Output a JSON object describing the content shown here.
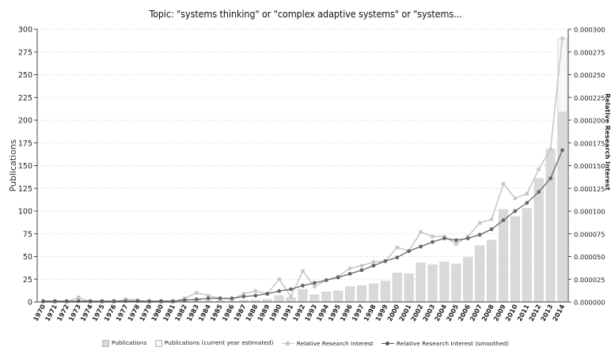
{
  "chart_data": {
    "type": "bar",
    "title": "Topic: \"systems thinking\" or \"complex adaptive systems\" or \"systems...",
    "ylabel": "Publications",
    "y2label": "Relative Research Interest",
    "ylim": [
      0,
      300
    ],
    "y2lim": [
      0,
      0.0003
    ],
    "yticks": [
      "0",
      "25",
      "50",
      "75",
      "100",
      "125",
      "150",
      "175",
      "200",
      "225",
      "250",
      "275",
      "300"
    ],
    "y2ticks": [
      "0.000000",
      "0.000025",
      "0.000050",
      "0.000075",
      "0.000100",
      "0.000125",
      "0.000150",
      "0.000175",
      "0.000200",
      "0.000225",
      "0.000250",
      "0.000275",
      "0.000300"
    ],
    "grid": true,
    "legend_position": "bottom",
    "categories": [
      "1970",
      "1971",
      "1972",
      "1973",
      "1974",
      "1975",
      "1976",
      "1977",
      "1978",
      "1979",
      "1980",
      "1981",
      "1982",
      "1983",
      "1984",
      "1985",
      "1986",
      "1987",
      "1988",
      "1989",
      "1990",
      "1991",
      "1992",
      "1993",
      "1994",
      "1995",
      "1996",
      "1997",
      "1998",
      "1999",
      "2000",
      "2001",
      "2002",
      "2003",
      "2004",
      "2005",
      "2006",
      "2007",
      "2008",
      "2009",
      "2010",
      "2011",
      "2012",
      "2013",
      "2014"
    ],
    "series": [
      {
        "name": "Publications",
        "kind": "bar",
        "axis": "left",
        "color": "#d9d9d9",
        "values": [
          0,
          0,
          0,
          1,
          0,
          0,
          0,
          0,
          0,
          0,
          0,
          0,
          1,
          3,
          2,
          2,
          1,
          2,
          2,
          3,
          7,
          5,
          14,
          8,
          11,
          12,
          17,
          18,
          20,
          23,
          32,
          31,
          43,
          41,
          44,
          42,
          49,
          62,
          68,
          102,
          94,
          103,
          136,
          168,
          209
        ]
      },
      {
        "name": "Publications (current year estimated)",
        "kind": "bar",
        "axis": "left",
        "color": "#f7f7f7",
        "values": [
          0,
          0,
          0,
          0,
          0,
          0,
          0,
          0,
          0,
          0,
          0,
          0,
          0,
          0,
          0,
          0,
          0,
          0,
          0,
          0,
          0,
          0,
          0,
          0,
          0,
          0,
          0,
          0,
          0,
          0,
          0,
          0,
          0,
          0,
          0,
          0,
          0,
          0,
          0,
          0,
          0,
          0,
          0,
          0,
          290
        ]
      },
      {
        "name": "Relative Research Interest",
        "kind": "line",
        "axis": "right",
        "color": "#c8c8c8",
        "values": [
          0.0,
          0.0,
          0.0,
          5e-06,
          0.0,
          0.0,
          0.0,
          3e-06,
          2e-06,
          0.0,
          0.0,
          0.0,
          4e-06,
          1e-05,
          7e-06,
          4e-06,
          3e-06,
          9e-06,
          1.2e-05,
          9e-06,
          2.5e-05,
          6e-06,
          3.4e-05,
          1.7e-05,
          2.4e-05,
          2.8e-05,
          3.7e-05,
          4e-05,
          4.4e-05,
          4.5e-05,
          6e-05,
          5.6e-05,
          7.7e-05,
          7.2e-05,
          7.2e-05,
          6.4e-05,
          7.2e-05,
          8.7e-05,
          9.1e-05,
          0.00013,
          0.000114,
          0.000119,
          0.000146,
          0.000168,
          0.00029
        ]
      },
      {
        "name": "Relative Research Interest (smoothed)",
        "kind": "line",
        "axis": "right",
        "color": "#666666",
        "values": [
          1e-06,
          1e-06,
          1e-06,
          1e-06,
          1e-06,
          1e-06,
          1e-06,
          1e-06,
          1e-06,
          1e-06,
          1e-06,
          1e-06,
          2e-06,
          3e-06,
          4e-06,
          4e-06,
          4e-06,
          6e-06,
          7e-06,
          9e-06,
          1.2e-05,
          1.4e-05,
          1.8e-05,
          2.1e-05,
          2.4e-05,
          2.7e-05,
          3.1e-05,
          3.5e-05,
          4e-05,
          4.5e-05,
          4.9e-05,
          5.6e-05,
          6.1e-05,
          6.6e-05,
          7e-05,
          6.8e-05,
          7e-05,
          7.4e-05,
          8e-05,
          9e-05,
          0.0001,
          0.000109,
          0.000121,
          0.000136,
          0.000167
        ]
      }
    ]
  },
  "legend": {
    "publications": "Publications",
    "publications_estimated": "Publications (current year estimated)",
    "relative_interest": "Relative Research Interest",
    "relative_interest_smoothed": "Relative Research Interest (smoothed)"
  }
}
